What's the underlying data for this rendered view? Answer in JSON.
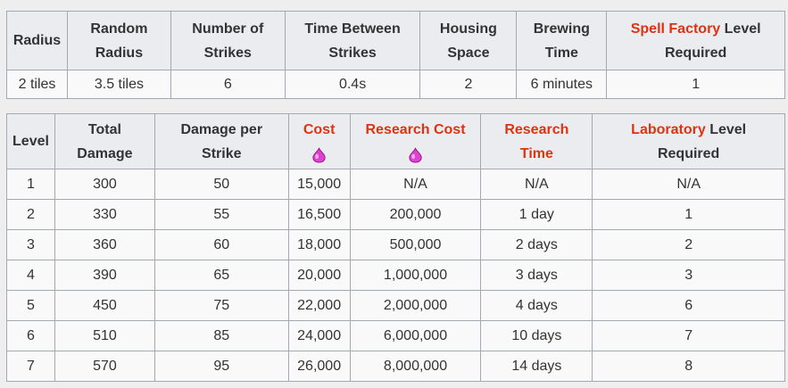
{
  "stats_table": {
    "headers": {
      "radius": "Radius",
      "random_radius_line1": "Random",
      "random_radius_line2": "Radius",
      "strikes_line1": "Number of",
      "strikes_line2": "Strikes",
      "time_between_line1": "Time Between",
      "time_between_line2": "Strikes",
      "housing_line1": "Housing",
      "housing_line2": "Space",
      "brewing_line1": "Brewing",
      "brewing_line2": "Time",
      "spell_factory_link": "Spell Factory",
      "spell_factory_rest1": " Level",
      "spell_factory_line2": "Required"
    },
    "row": {
      "radius": "2 tiles",
      "random_radius": "3.5 tiles",
      "strikes": "6",
      "time_between": "0.4s",
      "housing": "2",
      "brewing": "6 minutes",
      "spell_factory_level": "1"
    }
  },
  "levels_table": {
    "headers": {
      "level": "Level",
      "total_damage_line1": "Total",
      "total_damage_line2": "Damage",
      "dps_line1": "Damage per",
      "dps_line2": "Strike",
      "cost": "Cost",
      "research_cost": "Research Cost",
      "research_time_line1": "Research",
      "research_time_line2": "Time",
      "laboratory_link": "Laboratory",
      "laboratory_rest1": " Level",
      "laboratory_line2": "Required"
    },
    "rows": [
      {
        "level": "1",
        "total_damage": "300",
        "damage_per_strike": "50",
        "cost": "15,000",
        "research_cost": "N/A",
        "research_time": "N/A",
        "lab_level": "N/A"
      },
      {
        "level": "2",
        "total_damage": "330",
        "damage_per_strike": "55",
        "cost": "16,500",
        "research_cost": "200,000",
        "research_time": "1 day",
        "lab_level": "1"
      },
      {
        "level": "3",
        "total_damage": "360",
        "damage_per_strike": "60",
        "cost": "18,000",
        "research_cost": "500,000",
        "research_time": "2 days",
        "lab_level": "2"
      },
      {
        "level": "4",
        "total_damage": "390",
        "damage_per_strike": "65",
        "cost": "20,000",
        "research_cost": "1,000,000",
        "research_time": "3 days",
        "lab_level": "3"
      },
      {
        "level": "5",
        "total_damage": "450",
        "damage_per_strike": "75",
        "cost": "22,000",
        "research_cost": "2,000,000",
        "research_time": "4 days",
        "lab_level": "6"
      },
      {
        "level": "6",
        "total_damage": "510",
        "damage_per_strike": "85",
        "cost": "24,000",
        "research_cost": "6,000,000",
        "research_time": "10 days",
        "lab_level": "7"
      },
      {
        "level": "7",
        "total_damage": "570",
        "damage_per_strike": "95",
        "cost": "26,000",
        "research_cost": "8,000,000",
        "research_time": "14 days",
        "lab_level": "8"
      }
    ]
  },
  "icons": {
    "cost_icon": "elixir-drop-icon",
    "research_cost_icon": "elixir-drop-icon"
  },
  "colors": {
    "link": "#dd3311",
    "elixir": "#e040d0"
  }
}
